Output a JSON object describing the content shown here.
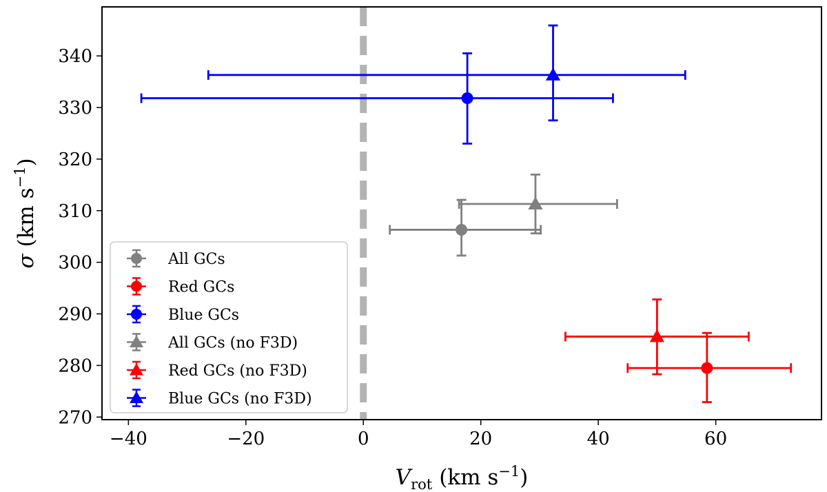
{
  "chart_data": {
    "type": "scatter",
    "title": "",
    "xlabel": "V",
    "xlabel_sub": "rot",
    "xlabel_unit": "(km s",
    "xlabel_exp": "−1",
    "xlabel_close": ")",
    "ylabel": "σ",
    "ylabel_unit": "(km s",
    "ylabel_exp": "−1",
    "ylabel_close": ")",
    "xlim": [
      -44.5,
      78
    ],
    "ylim": [
      269.5,
      349.5
    ],
    "xticks": [
      -40,
      -20,
      0,
      20,
      40,
      60
    ],
    "xtick_labels": [
      "−40",
      "−20",
      "0",
      "20",
      "40",
      "60"
    ],
    "yticks": [
      270,
      280,
      290,
      300,
      310,
      320,
      330,
      340
    ],
    "ytick_labels": [
      "270",
      "280",
      "290",
      "300",
      "310",
      "320",
      "330",
      "340"
    ],
    "reference_line": {
      "x": 0,
      "style": "dashed",
      "color": "#b3b3b3"
    },
    "legend_position": "lower-left",
    "series": [
      {
        "name": "All GCs",
        "marker": "circle",
        "color": "#808080",
        "x": 16.7,
        "y": 306.3,
        "xerr": [
          12.2,
          13.5
        ],
        "yerr": [
          5.0,
          5.8
        ]
      },
      {
        "name": "Red GCs",
        "marker": "circle",
        "color": "#ff0000",
        "x": 58.5,
        "y": 279.5,
        "xerr": [
          13.5,
          14.3
        ],
        "yerr": [
          6.6,
          6.8
        ]
      },
      {
        "name": "Blue GCs",
        "marker": "circle",
        "color": "#0000ff",
        "x": 17.7,
        "y": 331.8,
        "xerr": [
          55.5,
          24.8
        ],
        "yerr": [
          8.8,
          8.7
        ]
      },
      {
        "name": "All GCs (no F3D)",
        "marker": "triangle",
        "color": "#808080",
        "x": 29.3,
        "y": 311.3,
        "xerr": [
          13.0,
          13.9
        ],
        "yerr": [
          5.7,
          5.7
        ]
      },
      {
        "name": "Red GCs (no F3D)",
        "marker": "triangle",
        "color": "#ff0000",
        "x": 50.0,
        "y": 285.6,
        "xerr": [
          15.6,
          15.6
        ],
        "yerr": [
          7.3,
          7.2
        ]
      },
      {
        "name": "Blue GCs (no F3D)",
        "marker": "triangle",
        "color": "#0000ff",
        "x": 32.3,
        "y": 336.3,
        "xerr": [
          58.7,
          22.5
        ],
        "yerr": [
          8.8,
          9.6
        ]
      }
    ]
  }
}
